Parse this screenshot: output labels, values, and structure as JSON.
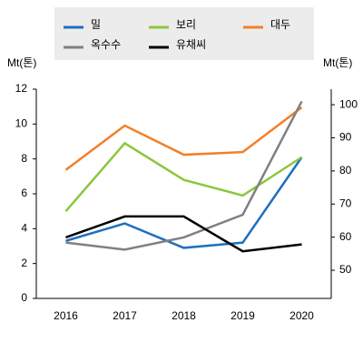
{
  "chart_data": {
    "type": "line",
    "y_label": "Mt(톤)",
    "y2_label": "Mt(톤)",
    "categories": [
      "2016",
      "2017",
      "2018",
      "2019",
      "2020"
    ],
    "series": [
      {
        "name": "밀",
        "color": "#1f6fbf",
        "values": [
          3.3,
          4.3,
          2.9,
          3.2,
          8.1
        ]
      },
      {
        "name": "보리",
        "color": "#8cc63f",
        "values": [
          5.0,
          8.9,
          6.8,
          5.9,
          8.1
        ]
      },
      {
        "name": "대두",
        "color": "#f47f2a",
        "axis": "y2",
        "values": [
          80.3,
          93.7,
          84.9,
          85.7,
          99.2
        ]
      },
      {
        "name": "옥수수",
        "color": "#808080",
        "values": [
          3.2,
          2.8,
          3.5,
          4.8,
          11.3
        ]
      },
      {
        "name": "유채씨",
        "color": "#000000",
        "values": [
          3.5,
          4.7,
          4.7,
          2.7,
          3.1
        ]
      }
    ],
    "ylim": [
      0,
      12
    ],
    "yticks": [
      0,
      2,
      4,
      6,
      8,
      10,
      12
    ],
    "y2lim": [
      41.5,
      104.7
    ],
    "y2ticks": [
      50,
      60,
      70,
      80,
      90,
      100
    ]
  }
}
